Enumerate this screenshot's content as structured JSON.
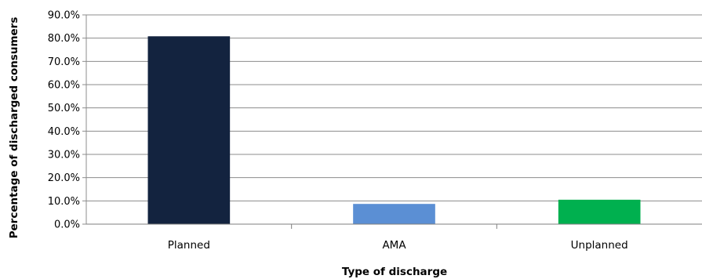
{
  "chart_data": {
    "type": "bar",
    "title": "",
    "xlabel": "Type of discharge",
    "ylabel": "Percentage of discharged consumers",
    "categories": [
      "Planned",
      "AMA",
      "Unplanned"
    ],
    "values": [
      80.8,
      8.7,
      10.5
    ],
    "colors": [
      "#13233f",
      "#5b8fd4",
      "#00b04f"
    ],
    "ylim": [
      0,
      90
    ],
    "yticks": [
      "0.0%",
      "10.0%",
      "20.0%",
      "30.0%",
      "40.0%",
      "50.0%",
      "60.0%",
      "70.0%",
      "80.0%",
      "90.0%"
    ],
    "ytick_values": [
      0,
      10,
      20,
      30,
      40,
      50,
      60,
      70,
      80,
      90
    ],
    "grid": true,
    "legend": "none"
  }
}
